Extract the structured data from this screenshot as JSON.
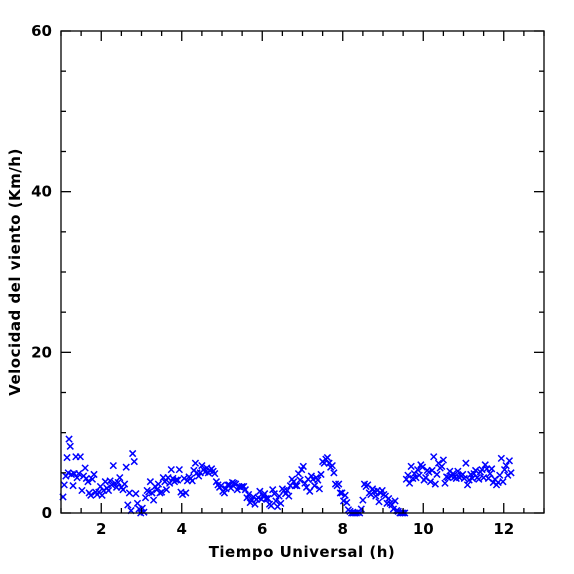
{
  "chart_data": {
    "type": "scatter",
    "title": "",
    "xlabel": "Tiempo Universal (h)",
    "ylabel": "Velocidad del viento (Km/h)",
    "xlim": [
      1,
      13
    ],
    "ylim": [
      0,
      60
    ],
    "xticks_major": [
      2,
      4,
      6,
      8,
      10,
      12
    ],
    "xticks_minor_step": 0.5,
    "yticks_major": [
      0,
      20,
      40,
      60
    ],
    "yticks_minor_step": 5,
    "marker": "x",
    "marker_color": "#0000ff",
    "grid": false,
    "legend": "none",
    "series": [
      {
        "points": [
          [
            1.05,
            2.0
          ],
          [
            1.08,
            3.5
          ],
          [
            1.12,
            4.6
          ],
          [
            1.15,
            6.9
          ],
          [
            1.18,
            5.0
          ],
          [
            1.2,
            9.2
          ],
          [
            1.23,
            8.3
          ],
          [
            1.26,
            4.8
          ],
          [
            1.3,
            3.4
          ],
          [
            1.33,
            4.9
          ],
          [
            1.37,
            7.0
          ],
          [
            1.4,
            4.4
          ],
          [
            1.44,
            4.9
          ],
          [
            1.48,
            7.0
          ],
          [
            1.52,
            2.8
          ],
          [
            1.56,
            4.6
          ],
          [
            1.6,
            5.6
          ],
          [
            1.63,
            4.3
          ],
          [
            1.67,
            3.9
          ],
          [
            1.7,
            2.5
          ],
          [
            1.74,
            2.2
          ],
          [
            1.78,
            4.2
          ],
          [
            1.82,
            4.8
          ],
          [
            1.86,
            2.6
          ],
          [
            1.9,
            2.3
          ],
          [
            1.94,
            2.6
          ],
          [
            1.98,
            3.3
          ],
          [
            2.02,
            2.2
          ],
          [
            2.06,
            2.8
          ],
          [
            2.1,
            3.9
          ],
          [
            2.14,
            3.1
          ],
          [
            2.18,
            2.8
          ],
          [
            2.22,
            4.0
          ],
          [
            2.26,
            3.5
          ],
          [
            2.3,
            5.9
          ],
          [
            2.34,
            3.7
          ],
          [
            2.38,
            3.2
          ],
          [
            2.42,
            3.8
          ],
          [
            2.46,
            4.4
          ],
          [
            2.5,
            3.2
          ],
          [
            2.54,
            2.9
          ],
          [
            2.58,
            3.6
          ],
          [
            2.62,
            5.7
          ],
          [
            2.66,
            1.0
          ],
          [
            2.7,
            2.5
          ],
          [
            2.74,
            0.3
          ],
          [
            2.78,
            7.4
          ],
          [
            2.82,
            6.4
          ],
          [
            2.86,
            2.4
          ],
          [
            2.9,
            1.2
          ],
          [
            2.94,
            0.5
          ],
          [
            2.98,
            0.0
          ],
          [
            3.02,
            0.6
          ],
          [
            3.06,
            0.1
          ],
          [
            3.1,
            1.9
          ],
          [
            3.14,
            2.8
          ],
          [
            3.18,
            2.6
          ],
          [
            3.22,
            3.9
          ],
          [
            3.26,
            2.5
          ],
          [
            3.3,
            1.6
          ],
          [
            3.34,
            3.3
          ],
          [
            3.38,
            2.9
          ],
          [
            3.42,
            3.6
          ],
          [
            3.46,
            2.5
          ],
          [
            3.5,
            2.6
          ],
          [
            3.54,
            4.4
          ],
          [
            3.58,
            3.9
          ],
          [
            3.62,
            2.9
          ],
          [
            3.66,
            4.4
          ],
          [
            3.7,
            3.7
          ],
          [
            3.74,
            5.4
          ],
          [
            3.78,
            4.3
          ],
          [
            3.82,
            3.9
          ],
          [
            3.86,
            4.1
          ],
          [
            3.9,
            4.1
          ],
          [
            3.94,
            5.4
          ],
          [
            3.98,
            2.6
          ],
          [
            4.02,
            2.3
          ],
          [
            4.06,
            4.3
          ],
          [
            4.1,
            2.5
          ],
          [
            4.14,
            4.0
          ],
          [
            4.18,
            4.5
          ],
          [
            4.22,
            4.3
          ],
          [
            4.26,
            4.0
          ],
          [
            4.3,
            5.3
          ],
          [
            4.34,
            6.2
          ],
          [
            4.38,
            5.0
          ],
          [
            4.42,
            4.6
          ],
          [
            4.46,
            5.0
          ],
          [
            4.5,
            5.9
          ],
          [
            4.54,
            5.4
          ],
          [
            4.58,
            5.1
          ],
          [
            4.62,
            5.6
          ],
          [
            4.66,
            5.0
          ],
          [
            4.7,
            5.3
          ],
          [
            4.74,
            5.5
          ],
          [
            4.78,
            5.2
          ],
          [
            4.82,
            4.9
          ],
          [
            4.86,
            3.9
          ],
          [
            4.9,
            3.5
          ],
          [
            4.94,
            3.2
          ],
          [
            4.98,
            3.4
          ],
          [
            5.02,
            2.7
          ],
          [
            5.06,
            2.5
          ],
          [
            5.1,
            3.0
          ],
          [
            5.14,
            3.5
          ],
          [
            5.18,
            3.5
          ],
          [
            5.22,
            3.1
          ],
          [
            5.26,
            3.8
          ],
          [
            5.3,
            3.7
          ],
          [
            5.34,
            3.6
          ],
          [
            5.38,
            2.9
          ],
          [
            5.42,
            3.3
          ],
          [
            5.46,
            3.2
          ],
          [
            5.5,
            3.3
          ],
          [
            5.54,
            3.3
          ],
          [
            5.58,
            2.9
          ],
          [
            5.62,
            1.9
          ],
          [
            5.66,
            2.3
          ],
          [
            5.7,
            1.3
          ],
          [
            5.74,
            1.6
          ],
          [
            5.78,
            2.0
          ],
          [
            5.82,
            1.1
          ],
          [
            5.86,
            1.7
          ],
          [
            5.9,
            1.9
          ],
          [
            5.94,
            2.7
          ],
          [
            5.98,
            1.7
          ],
          [
            6.02,
            2.1
          ],
          [
            6.06,
            2.4
          ],
          [
            6.1,
            1.8
          ],
          [
            6.14,
            1.8
          ],
          [
            6.18,
            1.1
          ],
          [
            6.22,
            0.9
          ],
          [
            6.26,
            2.9
          ],
          [
            6.3,
            2.4
          ],
          [
            6.34,
            1.5
          ],
          [
            6.38,
            0.8
          ],
          [
            6.42,
            2.1
          ],
          [
            6.46,
            1.2
          ],
          [
            6.5,
            3.0
          ],
          [
            6.54,
            2.8
          ],
          [
            6.58,
            2.4
          ],
          [
            6.62,
            2.8
          ],
          [
            6.66,
            2.1
          ],
          [
            6.7,
            3.4
          ],
          [
            6.74,
            4.2
          ],
          [
            6.78,
            3.9
          ],
          [
            6.82,
            3.4
          ],
          [
            6.86,
            3.4
          ],
          [
            6.9,
            4.9
          ],
          [
            6.94,
            4.1
          ],
          [
            6.98,
            5.4
          ],
          [
            7.02,
            5.8
          ],
          [
            7.06,
            3.7
          ],
          [
            7.1,
            3.2
          ],
          [
            7.14,
            4.2
          ],
          [
            7.18,
            2.7
          ],
          [
            7.22,
            4.6
          ],
          [
            7.26,
            4.2
          ],
          [
            7.3,
            3.4
          ],
          [
            7.34,
            4.4
          ],
          [
            7.38,
            4.1
          ],
          [
            7.42,
            3.0
          ],
          [
            7.46,
            4.8
          ],
          [
            7.5,
            6.4
          ],
          [
            7.54,
            6.2
          ],
          [
            7.58,
            6.7
          ],
          [
            7.62,
            6.9
          ],
          [
            7.66,
            6.2
          ],
          [
            7.7,
            5.7
          ],
          [
            7.74,
            5.9
          ],
          [
            7.78,
            5.0
          ],
          [
            7.82,
            3.6
          ],
          [
            7.86,
            3.4
          ],
          [
            7.9,
            3.6
          ],
          [
            7.94,
            2.5
          ],
          [
            7.98,
            2.5
          ],
          [
            8.02,
            1.5
          ],
          [
            8.06,
            2.2
          ],
          [
            8.1,
            1.3
          ],
          [
            8.14,
            0.4
          ],
          [
            8.18,
            0.2
          ],
          [
            8.22,
            0.0
          ],
          [
            8.26,
            0.0
          ],
          [
            8.3,
            0.0
          ],
          [
            8.34,
            0.0
          ],
          [
            8.38,
            0.1
          ],
          [
            8.42,
            0.0
          ],
          [
            8.46,
            0.5
          ],
          [
            8.5,
            1.6
          ],
          [
            8.54,
            3.6
          ],
          [
            8.58,
            3.3
          ],
          [
            8.62,
            3.5
          ],
          [
            8.66,
            2.5
          ],
          [
            8.7,
            2.3
          ],
          [
            8.74,
            3.0
          ],
          [
            8.78,
            2.7
          ],
          [
            8.82,
            2.1
          ],
          [
            8.86,
            2.8
          ],
          [
            8.9,
            1.4
          ],
          [
            8.94,
            2.5
          ],
          [
            8.98,
            2.8
          ],
          [
            9.02,
            2.3
          ],
          [
            9.06,
            2.1
          ],
          [
            9.1,
            1.2
          ],
          [
            9.14,
            1.8
          ],
          [
            9.18,
            1.2
          ],
          [
            9.22,
            1.0
          ],
          [
            9.26,
            0.5
          ],
          [
            9.3,
            1.5
          ],
          [
            9.34,
            0.3
          ],
          [
            9.38,
            0.2
          ],
          [
            9.42,
            0.0
          ],
          [
            9.46,
            0.0
          ],
          [
            9.5,
            0.0
          ],
          [
            9.54,
            0.0
          ],
          [
            9.58,
            4.2
          ],
          [
            9.62,
            4.7
          ],
          [
            9.66,
            3.7
          ],
          [
            9.7,
            5.8
          ],
          [
            9.74,
            4.3
          ],
          [
            9.78,
            4.9
          ],
          [
            9.82,
            4.4
          ],
          [
            9.86,
            5.4
          ],
          [
            9.9,
            4.7
          ],
          [
            9.94,
            6.0
          ],
          [
            9.98,
            5.7
          ],
          [
            10.02,
            4.1
          ],
          [
            10.06,
            4.4
          ],
          [
            10.1,
            5.3
          ],
          [
            10.14,
            5.1
          ],
          [
            10.18,
            3.9
          ],
          [
            10.22,
            5.3
          ],
          [
            10.26,
            7.0
          ],
          [
            10.3,
            3.6
          ],
          [
            10.34,
            4.8
          ],
          [
            10.38,
            6.2
          ],
          [
            10.42,
            5.6
          ],
          [
            10.46,
            5.8
          ],
          [
            10.5,
            6.6
          ],
          [
            10.54,
            3.7
          ],
          [
            10.58,
            4.5
          ],
          [
            10.62,
            4.4
          ],
          [
            10.66,
            5.2
          ],
          [
            10.7,
            4.6
          ],
          [
            10.74,
            4.9
          ],
          [
            10.78,
            4.5
          ],
          [
            10.82,
            4.3
          ],
          [
            10.86,
            5.2
          ],
          [
            10.9,
            4.4
          ],
          [
            10.94,
            4.6
          ],
          [
            10.98,
            4.8
          ],
          [
            11.02,
            4.3
          ],
          [
            11.06,
            6.2
          ],
          [
            11.1,
            3.5
          ],
          [
            11.14,
            4.1
          ],
          [
            11.18,
            4.8
          ],
          [
            11.22,
            4.3
          ],
          [
            11.26,
            4.9
          ],
          [
            11.3,
            5.3
          ],
          [
            11.34,
            4.4
          ],
          [
            11.38,
            4.2
          ],
          [
            11.42,
            5.1
          ],
          [
            11.46,
            5.4
          ],
          [
            11.5,
            4.4
          ],
          [
            11.54,
            6.0
          ],
          [
            11.58,
            5.5
          ],
          [
            11.62,
            4.3
          ],
          [
            11.66,
            4.9
          ],
          [
            11.7,
            5.5
          ],
          [
            11.74,
            3.8
          ],
          [
            11.78,
            4.2
          ],
          [
            11.82,
            3.5
          ],
          [
            11.86,
            3.8
          ],
          [
            11.9,
            4.7
          ],
          [
            11.94,
            6.8
          ],
          [
            11.98,
            3.9
          ],
          [
            12.02,
            5.4
          ],
          [
            12.06,
            5.9
          ],
          [
            12.1,
            4.7
          ],
          [
            12.14,
            6.5
          ],
          [
            12.18,
            5.0
          ]
        ]
      }
    ]
  }
}
